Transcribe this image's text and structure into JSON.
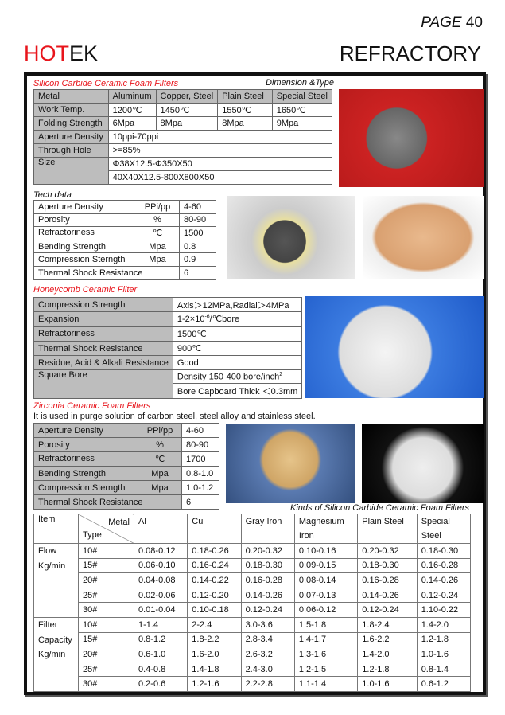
{
  "header": {
    "page_label": "PAGE",
    "page_number": "40",
    "brand_red": "HOT",
    "brand_black": "EK",
    "category": "REFRACTORY"
  },
  "sic": {
    "title": "Silicon Carbide Ceramic Foam Filters",
    "subtitle": "Dimension &Type",
    "head": [
      "Metal",
      "Aluminum",
      "Copper, Steel",
      "Plain Steel",
      "Special Steel"
    ],
    "work_temp": [
      "Work Temp.",
      "1200℃",
      "1450℃",
      "1550℃",
      "1650℃"
    ],
    "folding": [
      "Folding Strength",
      "6Mpa",
      "8Mpa",
      "8Mpa",
      "9Mpa"
    ],
    "aperture": [
      "Aperture Density",
      "10ppi-70ppi"
    ],
    "through": [
      "Through Hole",
      ">=85%"
    ],
    "size": [
      "Size",
      "Φ38X12.5-Φ350X50",
      "40X40X12.5-800X800X50"
    ]
  },
  "tech": {
    "title": "Tech data",
    "rows": [
      [
        "Aperture Density",
        "PPi/pp",
        "4-60"
      ],
      [
        "Porosity",
        "%",
        "80-90"
      ],
      [
        "Refractoriness",
        "℃",
        "1500"
      ],
      [
        "Bending Strength",
        "Mpa",
        "0.8"
      ],
      [
        "Compression Sterngth",
        "Mpa",
        "0.9"
      ],
      [
        "Thermal Shock Resistance",
        "",
        "6"
      ]
    ]
  },
  "honeycomb": {
    "title": "Honeycomb Ceramic Filter",
    "rows": [
      [
        "Compression Strength",
        "Axis＞12MPa,Radial＞4MPa"
      ],
      [
        "Expansion",
        "1-2×10",
        "-6",
        "/℃bore"
      ],
      [
        "Refractoriness",
        "1500℃"
      ],
      [
        "Thermal Shock Resistance",
        "900℃"
      ],
      [
        "Residue, Acid & Alkali Resistance",
        "Good"
      ],
      [
        "Square Bore",
        "Density 150-400 bore/inch",
        "2",
        "Bore Capboard Thick ＜0.3mm"
      ]
    ]
  },
  "zirconia": {
    "title": "Zirconia Ceramic Foam Filters",
    "description": "It is used in purge solution of carbon steel, steel alloy and stainless steel.",
    "rows": [
      [
        "Aperture Density",
        "PPi/pp",
        "4-60"
      ],
      [
        "Porosity",
        "%",
        "80-90"
      ],
      [
        "Refractoriness",
        "℃",
        "1700"
      ],
      [
        "Bending Strength",
        "Mpa",
        "0.8-1.0"
      ],
      [
        "Compression Sterngth",
        "Mpa",
        "1.0-1.2"
      ],
      [
        "Thermal Shock Resistance",
        "",
        "6"
      ]
    ]
  },
  "kinds": {
    "caption": "Kinds of Silicon Carbide Ceramic Foam Filters",
    "head": {
      "item": "Item",
      "metal": "Metal",
      "type": "Type",
      "cols": [
        [
          "Al",
          ""
        ],
        [
          "Cu",
          ""
        ],
        [
          "Gray Iron",
          ""
        ],
        [
          "Magnesium",
          "Iron"
        ],
        [
          "Plain Steel",
          ""
        ],
        [
          "Special",
          "Steel"
        ]
      ]
    },
    "flow_label": [
      "Flow",
      "Kg/min"
    ],
    "flow": [
      [
        "10#",
        "0.08-0.12",
        "0.18-0.26",
        "0.20-0.32",
        "0.10-0.16",
        "0.20-0.32",
        "0.18-0.30"
      ],
      [
        "15#",
        "0.06-0.10",
        "0.16-0.24",
        "0.18-0.30",
        "0.09-0.15",
        "0.18-0.30",
        "0.16-0.28"
      ],
      [
        "20#",
        "0.04-0.08",
        "0.14-0.22",
        "0.16-0.28",
        "0.08-0.14",
        "0.16-0.28",
        "0.14-0.26"
      ],
      [
        "25#",
        "0.02-0.06",
        "0.12-0.20",
        "0.14-0.26",
        "0.07-0.13",
        "0.14-0.26",
        "0.12-0.24"
      ],
      [
        "30#",
        "0.01-0.04",
        "0.10-0.18",
        "0.12-0.24",
        "0.06-0.12",
        "0.12-0.24",
        "1.10-0.22"
      ]
    ],
    "cap_label": [
      "Filter",
      "Capacity",
      "Kg/min"
    ],
    "cap": [
      [
        "10#",
        "1-1.4",
        "2-2.4",
        "3.0-3.6",
        "1.5-1.8",
        "1.8-2.4",
        "1.4-2.0"
      ],
      [
        "15#",
        "0.8-1.2",
        "1.8-2.2",
        "2.8-3.4",
        "1.4-1.7",
        "1.6-2.2",
        "1.2-1.8"
      ],
      [
        "20#",
        "0.6-1.0",
        "1.6-2.0",
        "2.6-3.2",
        "1.3-1.6",
        "1.4-2.0",
        "1.0-1.6"
      ],
      [
        "25#",
        "0.4-0.8",
        "1.4-1.8",
        "2.4-3.0",
        "1.2-1.5",
        "1.2-1.8",
        "0.8-1.4"
      ],
      [
        "30#",
        "0.2-0.6",
        "1.2-1.6",
        "2.2-2.8",
        "1.1-1.4",
        "1.0-1.6",
        "0.6-1.2"
      ]
    ]
  },
  "colors": {
    "accent_red": "#e8141b",
    "label_gray": "#bdbdbd"
  }
}
